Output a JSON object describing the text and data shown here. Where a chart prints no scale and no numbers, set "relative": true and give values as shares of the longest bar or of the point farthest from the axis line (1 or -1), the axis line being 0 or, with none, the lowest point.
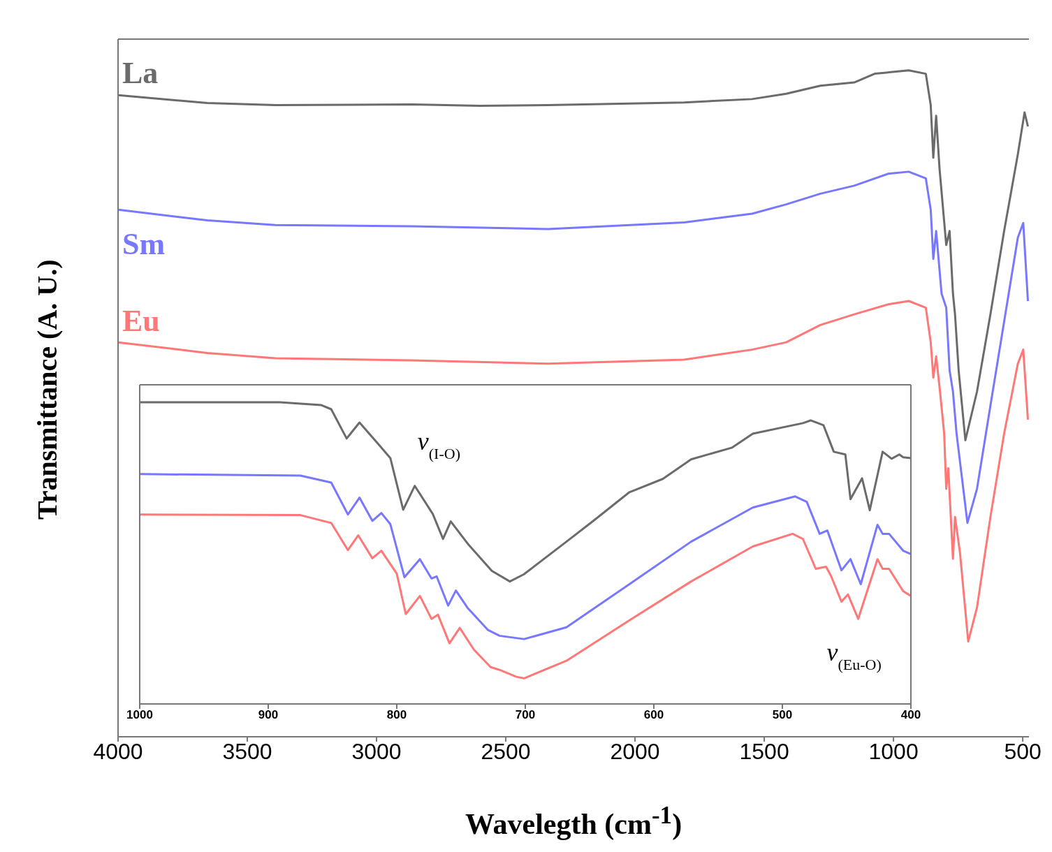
{
  "chart_data": [
    {
      "type": "line",
      "xlabel": "Wavelegth (cm$^{-1}$)",
      "ylabel": "Transmittance (A. U.)",
      "xlim": [
        4000,
        476
      ],
      "xticks": [
        4000,
        3500,
        3000,
        2500,
        2000,
        1500,
        1000,
        500
      ],
      "relative": true,
      "series": [
        {
          "name": "La",
          "color": "#6b6b6b",
          "x": [
            4000,
            3655,
            3391,
            2864,
            2601,
            2337,
            1810,
            1547,
            1415,
            1283,
            1152,
            1073,
            941,
            875,
            856,
            846,
            835,
            822,
            796,
            783,
            770,
            762,
            748,
            722,
            677,
            625,
            572,
            519,
            493,
            480
          ],
          "values": [
            0.963,
            0.951,
            0.948,
            0.949,
            0.947,
            0.948,
            0.952,
            0.957,
            0.965,
            0.977,
            0.982,
            0.995,
            1.0,
            0.995,
            0.948,
            0.869,
            0.932,
            0.853,
            0.738,
            0.759,
            0.665,
            0.634,
            0.55,
            0.445,
            0.518,
            0.634,
            0.759,
            0.874,
            0.937,
            0.916
          ]
        },
        {
          "name": "Sm",
          "color": "#7777ff",
          "x": [
            4000,
            3655,
            3391,
            2864,
            2337,
            1810,
            1547,
            1415,
            1283,
            1152,
            1020,
            941,
            875,
            856,
            846,
            835,
            814,
            796,
            783,
            770,
            756,
            714,
            677,
            625,
            572,
            519,
            498,
            480
          ],
          "values": [
            0.791,
            0.775,
            0.768,
            0.766,
            0.762,
            0.772,
            0.785,
            0.799,
            0.815,
            0.827,
            0.845,
            0.848,
            0.838,
            0.791,
            0.717,
            0.759,
            0.665,
            0.644,
            0.55,
            0.518,
            0.455,
            0.321,
            0.372,
            0.497,
            0.623,
            0.749,
            0.771,
            0.654
          ]
        },
        {
          "name": "Eu",
          "color": "#ff7777",
          "x": [
            4000,
            3655,
            3391,
            2864,
            2337,
            1810,
            1547,
            1415,
            1283,
            1152,
            1020,
            941,
            875,
            856,
            846,
            835,
            820,
            804,
            796,
            788,
            770,
            762,
            743,
            711,
            677,
            625,
            572,
            519,
            498,
            480
          ],
          "values": [
            0.592,
            0.576,
            0.568,
            0.565,
            0.56,
            0.566,
            0.581,
            0.592,
            0.618,
            0.634,
            0.649,
            0.654,
            0.644,
            0.592,
            0.539,
            0.571,
            0.518,
            0.455,
            0.372,
            0.403,
            0.267,
            0.33,
            0.277,
            0.143,
            0.194,
            0.33,
            0.455,
            0.56,
            0.581,
            0.476
          ]
        }
      ]
    },
    {
      "type": "line",
      "xlim": [
        1000,
        400
      ],
      "xticks": [
        1000,
        900,
        800,
        700,
        600,
        500,
        400
      ],
      "relative": true,
      "annotations": [
        "ν$_{(I-O)}$",
        "ν$_{(Eu-O)}$"
      ],
      "series": [
        {
          "color": "#6b6b6b",
          "x": [
            1000,
            891,
            859,
            851,
            839,
            829,
            813,
            805,
            795,
            786,
            772,
            764,
            758,
            744,
            726,
            712,
            701,
            668,
            647,
            619,
            593,
            571,
            539,
            523,
            484,
            478,
            468,
            460,
            451,
            447,
            438,
            432,
            422,
            415,
            409,
            406,
            400
          ],
          "values": [
            1.0,
            1.0,
            0.991,
            0.977,
            0.88,
            0.933,
            0.855,
            0.815,
            0.644,
            0.723,
            0.63,
            0.547,
            0.605,
            0.527,
            0.441,
            0.406,
            0.43,
            0.538,
            0.607,
            0.702,
            0.746,
            0.811,
            0.85,
            0.896,
            0.931,
            0.94,
            0.924,
            0.836,
            0.827,
            0.679,
            0.748,
            0.642,
            0.836,
            0.813,
            0.827,
            0.818,
            0.815
          ]
        },
        {
          "color": "#7777ff",
          "x": [
            1000,
            875,
            851,
            838,
            829,
            819,
            812,
            805,
            794,
            782,
            773,
            769,
            760,
            754,
            745,
            729,
            720,
            701,
            668,
            619,
            571,
            523,
            490,
            481,
            471,
            465,
            454,
            447,
            439,
            426,
            422,
            417,
            406,
            400
          ],
          "values": [
            0.762,
            0.757,
            0.734,
            0.628,
            0.684,
            0.607,
            0.633,
            0.596,
            0.42,
            0.48,
            0.416,
            0.423,
            0.326,
            0.376,
            0.319,
            0.245,
            0.226,
            0.215,
            0.254,
            0.397,
            0.538,
            0.651,
            0.688,
            0.67,
            0.564,
            0.575,
            0.443,
            0.48,
            0.397,
            0.594,
            0.564,
            0.564,
            0.508,
            0.497
          ]
        },
        {
          "color": "#ff7777",
          "x": [
            1000,
            875,
            851,
            838,
            830,
            819,
            812,
            800,
            793,
            782,
            773,
            768,
            759,
            751,
            740,
            727,
            720,
            707,
            701,
            668,
            619,
            571,
            523,
            492,
            484,
            474,
            466,
            462,
            454,
            449,
            441,
            426,
            422,
            417,
            406,
            400
          ],
          "values": [
            0.628,
            0.626,
            0.6,
            0.51,
            0.559,
            0.483,
            0.508,
            0.432,
            0.298,
            0.358,
            0.282,
            0.296,
            0.201,
            0.252,
            0.18,
            0.122,
            0.113,
            0.09,
            0.085,
            0.143,
            0.277,
            0.406,
            0.522,
            0.564,
            0.547,
            0.448,
            0.455,
            0.423,
            0.339,
            0.363,
            0.282,
            0.48,
            0.448,
            0.448,
            0.374,
            0.358
          ]
        }
      ]
    }
  ]
}
